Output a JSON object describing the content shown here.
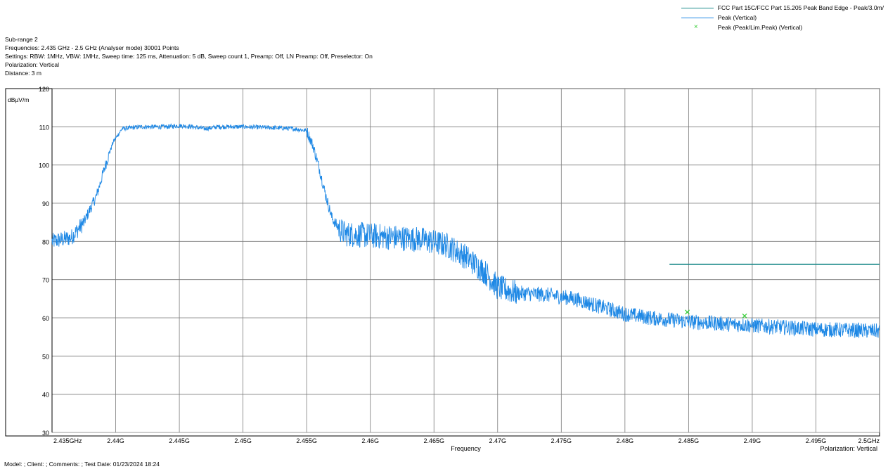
{
  "header": {
    "line1": "Sub-range 2",
    "line2": "Frequencies: 2.435 GHz - 2.5 GHz (Analyser mode) 30001 Points",
    "line3": "Settings: RBW: 1MHz, VBW: 1MHz, Sweep time: 125 ms, Attenuation: 5 dB, Sweep count 1, Preamp: Off, LN Preamp: Off, Preselector: On",
    "line4": "Polarization: Vertical",
    "line5": "Distance: 3 m"
  },
  "legend": [
    {
      "label": "FCC Part 15C/FCC Part 15.205 Peak Band Edge  - Peak/3.0m/",
      "kind": "line",
      "color": "#1b8a8a"
    },
    {
      "label": "Peak (Vertical)",
      "kind": "line",
      "color": "#1e88e5"
    },
    {
      "label": "Peak (Peak/Lim.Peak) (Vertical)",
      "kind": "marker",
      "color": "#33cc33"
    }
  ],
  "footer": "Model: ;  Client: ;  Comments: ;  Test Date:  01/23/2024 18:24",
  "chart_data": {
    "type": "line",
    "ylabel": "dBµV/m",
    "xlabel": "Frequency",
    "polarization_label": "Polarization: Vertical",
    "xlim": [
      2.435,
      2.5
    ],
    "ylim": [
      30,
      120
    ],
    "yticks": [
      30,
      40,
      50,
      60,
      70,
      80,
      90,
      100,
      110,
      120
    ],
    "xticks": [
      2.435,
      2.44,
      2.445,
      2.45,
      2.455,
      2.46,
      2.465,
      2.47,
      2.475,
      2.48,
      2.485,
      2.49,
      2.495,
      2.5
    ],
    "xtick_labels": [
      "2.435GHz",
      "2.44G",
      "2.445G",
      "2.45G",
      "2.455G",
      "2.46G",
      "2.465G",
      "2.47G",
      "2.475G",
      "2.48G",
      "2.485G",
      "2.49G",
      "2.495G",
      "2.5GHz"
    ],
    "grid": true,
    "legend_position": "top-right",
    "series": [
      {
        "name": "FCC Part 15C/FCC Part 15.205 Peak Band Edge  - Peak/3.0m/",
        "color": "#1b8a8a",
        "x": [
          2.4835,
          2.5
        ],
        "y": [
          74,
          74
        ]
      },
      {
        "name": "Peak (Vertical)",
        "color": "#1e88e5",
        "x": [
          2.435,
          2.4365,
          2.4375,
          2.4385,
          2.4392,
          2.4398,
          2.4405,
          2.442,
          2.444,
          2.445,
          2.446,
          2.447,
          2.448,
          2.45,
          2.452,
          2.454,
          2.455,
          2.4555,
          2.456,
          2.4565,
          2.457,
          2.4575,
          2.458,
          2.46,
          2.462,
          2.464,
          2.466,
          2.4675,
          2.469,
          2.47,
          2.4715,
          2.474,
          2.476,
          2.478,
          2.48,
          2.482,
          2.485,
          2.4875,
          2.49,
          2.4925,
          2.495,
          2.4975,
          2.5
        ],
        "y": [
          80,
          81,
          85,
          92,
          100,
          106,
          109.5,
          110,
          110,
          110.3,
          110,
          109.5,
          110,
          110,
          109.8,
          109.5,
          109,
          105,
          99,
          92,
          86,
          83.5,
          82,
          81.5,
          81,
          80.5,
          79,
          76,
          72,
          68,
          66.5,
          66,
          65,
          63,
          61,
          60,
          59,
          58.5,
          58,
          57.5,
          57,
          56.8,
          56.5
        ]
      },
      {
        "name": "Peak (Peak/Lim.Peak) (Vertical)",
        "color": "#33cc33",
        "x": [
          2.4849,
          2.4894
        ],
        "y": [
          61.5,
          60.5
        ]
      }
    ]
  }
}
